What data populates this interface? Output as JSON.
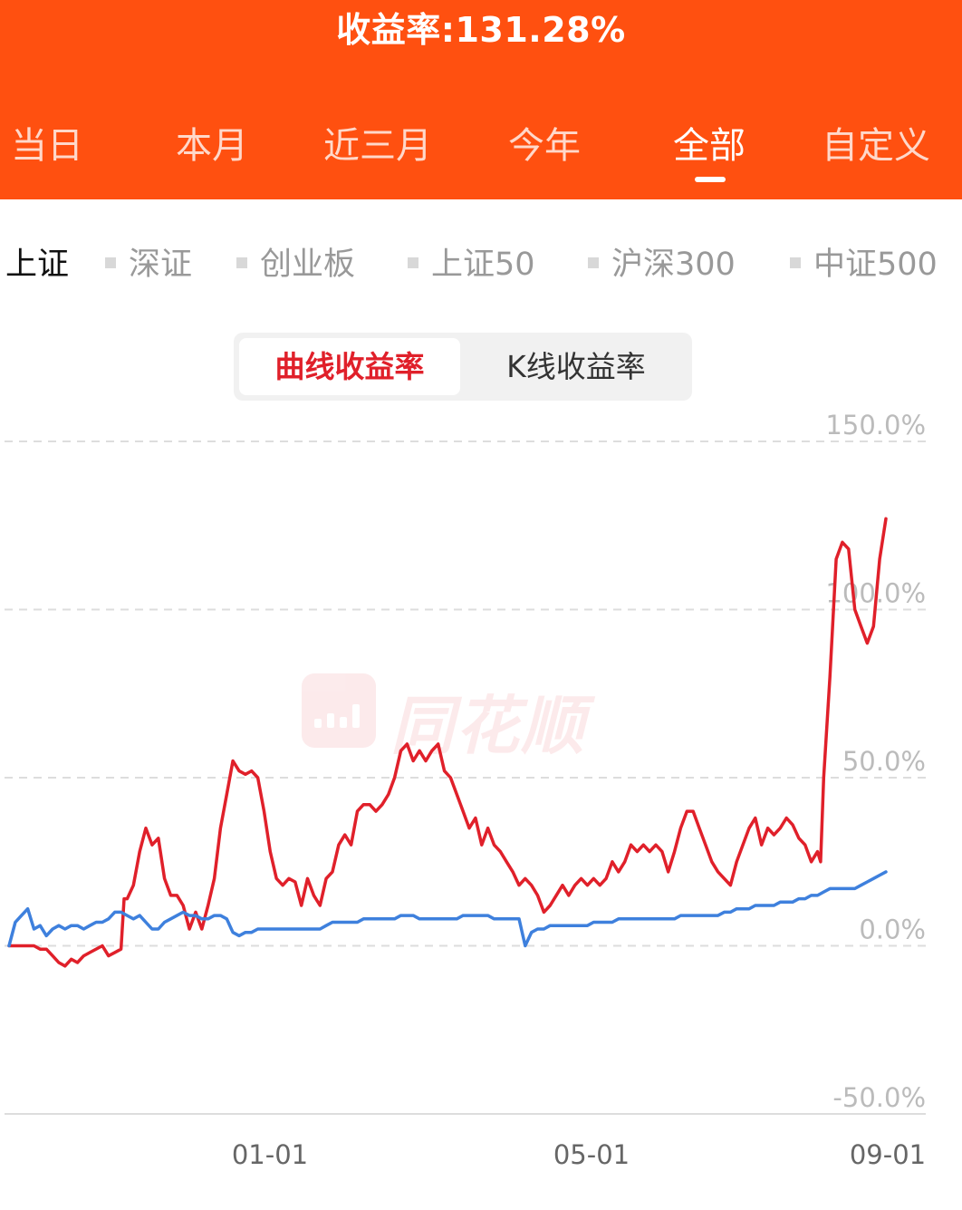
{
  "header": {
    "title": "收益率:131.28%"
  },
  "tabs": [
    {
      "label": "当日"
    },
    {
      "label": "本月"
    },
    {
      "label": "近三月"
    },
    {
      "label": "今年"
    },
    {
      "label": "全部"
    },
    {
      "label": "自定义"
    }
  ],
  "active_tab": "全部",
  "index_options": [
    {
      "label": "上证"
    },
    {
      "label": "深证"
    },
    {
      "label": "创业板"
    },
    {
      "label": "上证50"
    },
    {
      "label": "沪深300"
    },
    {
      "label": "中证500"
    }
  ],
  "active_index": "上证",
  "mode_toggle": {
    "selected": "曲线收益率",
    "other": "K线收益率"
  },
  "watermark": {
    "text": "同花顺"
  },
  "colors": {
    "header_bg": "#ff5010",
    "portfolio_line": "#e0202a",
    "index_line": "#3e80dd",
    "grid": "#dddddd"
  },
  "chart_data": {
    "type": "line",
    "y_unit": "%",
    "ylim": [
      -50,
      150
    ],
    "yticks": [
      "150.0%",
      "100.0%",
      "50.0%",
      "0.0%",
      "-50.0%"
    ],
    "xticks": [
      "01-01",
      "05-01",
      "09-01"
    ],
    "grid": true,
    "series": [
      {
        "color": "#e0202a",
        "points": [
          [
            0,
            0
          ],
          [
            2,
            0
          ],
          [
            4,
            0
          ],
          [
            5,
            -1
          ],
          [
            6,
            -1
          ],
          [
            7,
            -3
          ],
          [
            8,
            -5
          ],
          [
            9,
            -6
          ],
          [
            10,
            -4
          ],
          [
            11,
            -5
          ],
          [
            12,
            -3
          ],
          [
            13,
            -2
          ],
          [
            15,
            0
          ],
          [
            16,
            -3
          ],
          [
            17,
            -2
          ],
          [
            18,
            -1
          ],
          [
            18.5,
            14
          ],
          [
            19,
            14
          ],
          [
            20,
            18
          ],
          [
            21,
            28
          ],
          [
            22,
            35
          ],
          [
            23,
            30
          ],
          [
            24,
            32
          ],
          [
            25,
            20
          ],
          [
            26,
            15
          ],
          [
            27,
            15
          ],
          [
            28,
            12
          ],
          [
            29,
            5
          ],
          [
            30,
            10
          ],
          [
            31,
            5
          ],
          [
            32,
            12
          ],
          [
            33,
            20
          ],
          [
            34,
            35
          ],
          [
            35,
            45
          ],
          [
            36,
            55
          ],
          [
            37,
            52
          ],
          [
            38,
            51
          ],
          [
            39,
            52
          ],
          [
            40,
            50
          ],
          [
            41,
            40
          ],
          [
            42,
            28
          ],
          [
            43,
            20
          ],
          [
            44,
            18
          ],
          [
            45,
            20
          ],
          [
            46,
            19
          ],
          [
            47,
            12
          ],
          [
            48,
            20
          ],
          [
            49,
            15
          ],
          [
            50,
            12
          ],
          [
            51,
            20
          ],
          [
            52,
            22
          ],
          [
            53,
            30
          ],
          [
            54,
            33
          ],
          [
            55,
            30
          ],
          [
            56,
            40
          ],
          [
            57,
            42
          ],
          [
            58,
            42
          ],
          [
            59,
            40
          ],
          [
            60,
            42
          ],
          [
            61,
            45
          ],
          [
            62,
            50
          ],
          [
            63,
            58
          ],
          [
            64,
            60
          ],
          [
            65,
            55
          ],
          [
            66,
            58
          ],
          [
            67,
            55
          ],
          [
            68,
            58
          ],
          [
            69,
            60
          ],
          [
            70,
            52
          ],
          [
            71,
            50
          ],
          [
            72,
            45
          ],
          [
            73,
            40
          ],
          [
            74,
            35
          ],
          [
            75,
            38
          ],
          [
            76,
            30
          ],
          [
            77,
            35
          ],
          [
            78,
            30
          ],
          [
            79,
            28
          ],
          [
            80,
            25
          ],
          [
            81,
            22
          ],
          [
            82,
            18
          ],
          [
            83,
            20
          ],
          [
            84,
            18
          ],
          [
            85,
            15
          ],
          [
            86,
            10
          ],
          [
            87,
            12
          ],
          [
            88,
            15
          ],
          [
            89,
            18
          ],
          [
            90,
            15
          ],
          [
            91,
            18
          ],
          [
            92,
            20
          ],
          [
            93,
            18
          ],
          [
            94,
            20
          ],
          [
            95,
            18
          ],
          [
            96,
            20
          ],
          [
            97,
            25
          ],
          [
            98,
            22
          ],
          [
            99,
            25
          ],
          [
            100,
            30
          ],
          [
            101,
            28
          ],
          [
            102,
            30
          ],
          [
            103,
            28
          ],
          [
            104,
            30
          ],
          [
            105,
            28
          ],
          [
            106,
            22
          ],
          [
            107,
            28
          ],
          [
            108,
            35
          ],
          [
            109,
            40
          ],
          [
            110,
            40
          ],
          [
            111,
            35
          ],
          [
            112,
            30
          ],
          [
            113,
            25
          ],
          [
            114,
            22
          ],
          [
            115,
            20
          ],
          [
            116,
            18
          ],
          [
            117,
            25
          ],
          [
            118,
            30
          ],
          [
            119,
            35
          ],
          [
            120,
            38
          ],
          [
            121,
            30
          ],
          [
            122,
            35
          ],
          [
            123,
            33
          ],
          [
            124,
            35
          ],
          [
            125,
            38
          ],
          [
            126,
            36
          ],
          [
            127,
            32
          ],
          [
            128,
            30
          ],
          [
            129,
            25
          ],
          [
            130,
            28
          ],
          [
            130.5,
            25
          ],
          [
            131,
            50
          ],
          [
            132,
            80
          ],
          [
            133,
            115
          ],
          [
            134,
            120
          ],
          [
            135,
            118
          ],
          [
            136,
            100
          ],
          [
            137,
            95
          ],
          [
            138,
            90
          ],
          [
            139,
            95
          ],
          [
            140,
            115
          ],
          [
            141,
            127
          ]
        ]
      },
      {
        "color": "#3e80dd",
        "points": [
          [
            0,
            0
          ],
          [
            1,
            7
          ],
          [
            2,
            9
          ],
          [
            3,
            11
          ],
          [
            4,
            5
          ],
          [
            5,
            6
          ],
          [
            6,
            3
          ],
          [
            7,
            5
          ],
          [
            8,
            6
          ],
          [
            9,
            5
          ],
          [
            10,
            6
          ],
          [
            11,
            6
          ],
          [
            12,
            5
          ],
          [
            13,
            6
          ],
          [
            14,
            7
          ],
          [
            15,
            7
          ],
          [
            16,
            8
          ],
          [
            17,
            10
          ],
          [
            18,
            10
          ],
          [
            19,
            9
          ],
          [
            20,
            8
          ],
          [
            21,
            9
          ],
          [
            22,
            7
          ],
          [
            23,
            5
          ],
          [
            24,
            5
          ],
          [
            25,
            7
          ],
          [
            26,
            8
          ],
          [
            27,
            9
          ],
          [
            28,
            10
          ],
          [
            29,
            9
          ],
          [
            30,
            9
          ],
          [
            31,
            8
          ],
          [
            32,
            8
          ],
          [
            33,
            9
          ],
          [
            34,
            9
          ],
          [
            35,
            8
          ],
          [
            36,
            4
          ],
          [
            37,
            3
          ],
          [
            38,
            4
          ],
          [
            39,
            4
          ],
          [
            40,
            5
          ],
          [
            41,
            5
          ],
          [
            42,
            5
          ],
          [
            43,
            5
          ],
          [
            44,
            5
          ],
          [
            45,
            5
          ],
          [
            46,
            5
          ],
          [
            47,
            5
          ],
          [
            48,
            5
          ],
          [
            49,
            5
          ],
          [
            50,
            5
          ],
          [
            51,
            6
          ],
          [
            52,
            7
          ],
          [
            53,
            7
          ],
          [
            54,
            7
          ],
          [
            55,
            7
          ],
          [
            56,
            7
          ],
          [
            57,
            8
          ],
          [
            58,
            8
          ],
          [
            59,
            8
          ],
          [
            60,
            8
          ],
          [
            61,
            8
          ],
          [
            62,
            8
          ],
          [
            63,
            9
          ],
          [
            64,
            9
          ],
          [
            65,
            9
          ],
          [
            66,
            8
          ],
          [
            67,
            8
          ],
          [
            68,
            8
          ],
          [
            69,
            8
          ],
          [
            70,
            8
          ],
          [
            71,
            8
          ],
          [
            72,
            8
          ],
          [
            73,
            9
          ],
          [
            74,
            9
          ],
          [
            75,
            9
          ],
          [
            76,
            9
          ],
          [
            77,
            9
          ],
          [
            78,
            8
          ],
          [
            79,
            8
          ],
          [
            80,
            8
          ],
          [
            81,
            8
          ],
          [
            82,
            8
          ],
          [
            83,
            0
          ],
          [
            84,
            4
          ],
          [
            85,
            5
          ],
          [
            86,
            5
          ],
          [
            87,
            6
          ],
          [
            88,
            6
          ],
          [
            89,
            6
          ],
          [
            90,
            6
          ],
          [
            91,
            6
          ],
          [
            92,
            6
          ],
          [
            93,
            6
          ],
          [
            94,
            7
          ],
          [
            95,
            7
          ],
          [
            96,
            7
          ],
          [
            97,
            7
          ],
          [
            98,
            8
          ],
          [
            99,
            8
          ],
          [
            100,
            8
          ],
          [
            101,
            8
          ],
          [
            102,
            8
          ],
          [
            103,
            8
          ],
          [
            104,
            8
          ],
          [
            105,
            8
          ],
          [
            106,
            8
          ],
          [
            107,
            8
          ],
          [
            108,
            9
          ],
          [
            109,
            9
          ],
          [
            110,
            9
          ],
          [
            111,
            9
          ],
          [
            112,
            9
          ],
          [
            113,
            9
          ],
          [
            114,
            9
          ],
          [
            115,
            10
          ],
          [
            116,
            10
          ],
          [
            117,
            11
          ],
          [
            118,
            11
          ],
          [
            119,
            11
          ],
          [
            120,
            12
          ],
          [
            121,
            12
          ],
          [
            122,
            12
          ],
          [
            123,
            12
          ],
          [
            124,
            13
          ],
          [
            125,
            13
          ],
          [
            126,
            13
          ],
          [
            127,
            14
          ],
          [
            128,
            14
          ],
          [
            129,
            15
          ],
          [
            130,
            15
          ],
          [
            131,
            16
          ],
          [
            132,
            17
          ],
          [
            133,
            17
          ],
          [
            134,
            17
          ],
          [
            135,
            17
          ],
          [
            136,
            17
          ],
          [
            137,
            18
          ],
          [
            138,
            19
          ],
          [
            139,
            20
          ],
          [
            140,
            21
          ],
          [
            141,
            22
          ]
        ]
      }
    ]
  }
}
